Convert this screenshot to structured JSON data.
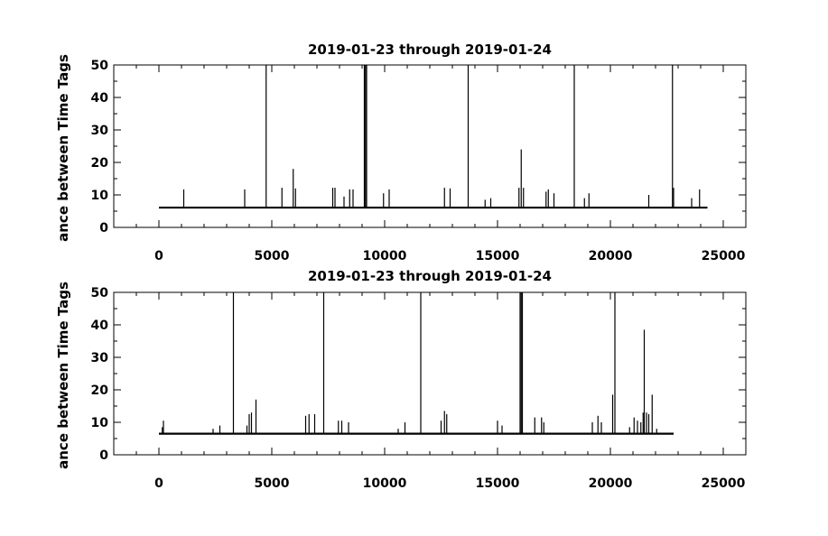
{
  "chart_data": [
    {
      "type": "line",
      "title": "2019-01-23 through 2019-01-24",
      "xlabel": "",
      "ylabel": "ance between Time Tags",
      "xlim": [
        -2000,
        26000
      ],
      "ylim": [
        0,
        50
      ],
      "xticks": [
        0,
        5000,
        10000,
        15000,
        20000,
        25000
      ],
      "xtick_labels": [
        "0",
        "5000",
        "10000",
        "15000",
        "20000",
        "25000"
      ],
      "yticks": [
        0,
        10,
        20,
        30,
        40,
        50
      ],
      "ytick_labels": [
        "0",
        "10",
        "20",
        "30",
        "40",
        "50"
      ],
      "grid": false,
      "series": [
        {
          "baseline": {
            "x": [
              0,
              24300
            ],
            "y": 6.1
          },
          "spikes": [
            {
              "x": 1100,
              "y": 11.7
            },
            {
              "x": 3800,
              "y": 11.7
            },
            {
              "x": 4750,
              "y": 50
            },
            {
              "x": 5450,
              "y": 12.2
            },
            {
              "x": 5950,
              "y": 18.0
            },
            {
              "x": 6050,
              "y": 12.0
            },
            {
              "x": 7700,
              "y": 12.2
            },
            {
              "x": 7800,
              "y": 12.2
            },
            {
              "x": 8200,
              "y": 9.5
            },
            {
              "x": 8450,
              "y": 11.7
            },
            {
              "x": 8600,
              "y": 11.7
            },
            {
              "x": 9100,
              "y": 50
            },
            {
              "x": 9150,
              "y": 50
            },
            {
              "x": 9200,
              "y": 50
            },
            {
              "x": 9950,
              "y": 10.5
            },
            {
              "x": 10200,
              "y": 11.7
            },
            {
              "x": 12650,
              "y": 12.2
            },
            {
              "x": 12900,
              "y": 12.0
            },
            {
              "x": 13700,
              "y": 50
            },
            {
              "x": 14450,
              "y": 8.5
            },
            {
              "x": 14700,
              "y": 9.0
            },
            {
              "x": 15950,
              "y": 12.2
            },
            {
              "x": 16050,
              "y": 24.0
            },
            {
              "x": 16150,
              "y": 12.2
            },
            {
              "x": 17150,
              "y": 11.0
            },
            {
              "x": 17250,
              "y": 11.7
            },
            {
              "x": 17500,
              "y": 10.5
            },
            {
              "x": 18400,
              "y": 50
            },
            {
              "x": 18850,
              "y": 9.0
            },
            {
              "x": 19050,
              "y": 10.5
            },
            {
              "x": 21700,
              "y": 10.0
            },
            {
              "x": 22750,
              "y": 50
            },
            {
              "x": 22800,
              "y": 12.2
            },
            {
              "x": 23600,
              "y": 9.0
            },
            {
              "x": 23950,
              "y": 11.7
            }
          ]
        }
      ]
    },
    {
      "type": "line",
      "title": "2019-01-23 through 2019-01-24",
      "xlabel": "",
      "ylabel": "ance between Time Tags",
      "xlim": [
        -2000,
        26000
      ],
      "ylim": [
        0,
        50
      ],
      "xticks": [
        0,
        5000,
        10000,
        15000,
        20000,
        25000
      ],
      "xtick_labels": [
        "0",
        "5000",
        "10000",
        "15000",
        "20000",
        "25000"
      ],
      "yticks": [
        0,
        10,
        20,
        30,
        40,
        50
      ],
      "ytick_labels": [
        "0",
        "10",
        "20",
        "30",
        "40",
        "50"
      ],
      "grid": false,
      "series": [
        {
          "baseline": {
            "x": [
              0,
              22800
            ],
            "y": 6.5
          },
          "spikes": [
            {
              "x": 150,
              "y": 8.5
            },
            {
              "x": 200,
              "y": 10.5
            },
            {
              "x": 2400,
              "y": 8.0
            },
            {
              "x": 2700,
              "y": 9.0
            },
            {
              "x": 3300,
              "y": 50
            },
            {
              "x": 3900,
              "y": 9.0
            },
            {
              "x": 4000,
              "y": 12.5
            },
            {
              "x": 4100,
              "y": 13.0
            },
            {
              "x": 4300,
              "y": 17.0
            },
            {
              "x": 6500,
              "y": 12.0
            },
            {
              "x": 6650,
              "y": 12.5
            },
            {
              "x": 6900,
              "y": 12.5
            },
            {
              "x": 7300,
              "y": 50
            },
            {
              "x": 7950,
              "y": 10.5
            },
            {
              "x": 8100,
              "y": 10.5
            },
            {
              "x": 8400,
              "y": 10.0
            },
            {
              "x": 10600,
              "y": 8.0
            },
            {
              "x": 10900,
              "y": 10.0
            },
            {
              "x": 11600,
              "y": 50
            },
            {
              "x": 12500,
              "y": 10.5
            },
            {
              "x": 12650,
              "y": 13.5
            },
            {
              "x": 12750,
              "y": 12.5
            },
            {
              "x": 15000,
              "y": 10.5
            },
            {
              "x": 15200,
              "y": 9.0
            },
            {
              "x": 16000,
              "y": 50
            },
            {
              "x": 16050,
              "y": 50
            },
            {
              "x": 16100,
              "y": 50
            },
            {
              "x": 16650,
              "y": 11.5
            },
            {
              "x": 16950,
              "y": 11.5
            },
            {
              "x": 17050,
              "y": 10.0
            },
            {
              "x": 19200,
              "y": 10.0
            },
            {
              "x": 19450,
              "y": 12.0
            },
            {
              "x": 19600,
              "y": 10.0
            },
            {
              "x": 20200,
              "y": 50
            },
            {
              "x": 20100,
              "y": 18.5
            },
            {
              "x": 20850,
              "y": 8.5
            },
            {
              "x": 21050,
              "y": 11.5
            },
            {
              "x": 21200,
              "y": 10.5
            },
            {
              "x": 21350,
              "y": 10.0
            },
            {
              "x": 21450,
              "y": 13.0
            },
            {
              "x": 21500,
              "y": 38.5
            },
            {
              "x": 21600,
              "y": 13.0
            },
            {
              "x": 21700,
              "y": 12.5
            },
            {
              "x": 21850,
              "y": 18.5
            },
            {
              "x": 22050,
              "y": 8.0
            }
          ]
        }
      ]
    }
  ]
}
